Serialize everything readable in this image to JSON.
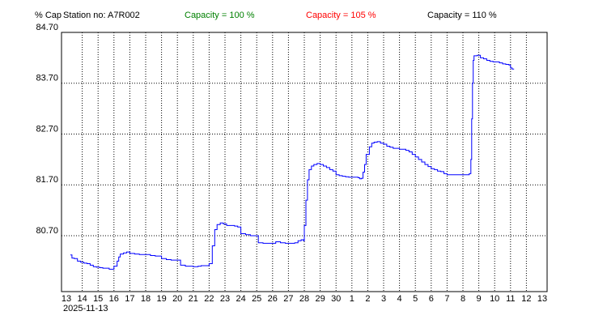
{
  "header": {
    "y_unit": "% Cap",
    "station": "Station no: A7R002",
    "capacity_100": "Capacity = 100 %",
    "capacity_105": "Capacity = 105 %",
    "capacity_110": "Capacity = 110 %"
  },
  "colors": {
    "cap100": "#008000",
    "cap105": "#ff0000",
    "cap110": "#000000",
    "series": "#0000ff",
    "grid": "#000000"
  },
  "chart_data": {
    "type": "line",
    "title": "",
    "xlabel": "",
    "ylabel": "% Cap",
    "date_label": "2025-11-13",
    "y_ticks": [
      "84.70",
      "83.70",
      "82.70",
      "81.70",
      "80.70"
    ],
    "ylim": [
      79.6,
      84.7
    ],
    "x_tick_labels": [
      "13",
      "14",
      "15",
      "16",
      "17",
      "18",
      "19",
      "20",
      "21",
      "22",
      "23",
      "24",
      "25",
      "26",
      "27",
      "28",
      "29",
      "30",
      "1",
      "2",
      "3",
      "4",
      "5",
      "6",
      "7",
      "8",
      "9",
      "10",
      "11",
      "12",
      "13"
    ],
    "grid": true,
    "series": [
      {
        "name": "",
        "points": [
          [
            0.25,
            80.32
          ],
          [
            0.35,
            80.26
          ],
          [
            0.5,
            80.25
          ],
          [
            0.7,
            80.2
          ],
          [
            0.9,
            80.18
          ],
          [
            1.1,
            80.16
          ],
          [
            1.3,
            80.15
          ],
          [
            1.5,
            80.12
          ],
          [
            1.7,
            80.09
          ],
          [
            1.9,
            80.08
          ],
          [
            2.1,
            80.07
          ],
          [
            2.3,
            80.06
          ],
          [
            2.5,
            80.06
          ],
          [
            2.7,
            80.04
          ],
          [
            2.9,
            80.04
          ],
          [
            3.0,
            80.1
          ],
          [
            3.2,
            80.2
          ],
          [
            3.3,
            80.28
          ],
          [
            3.4,
            80.34
          ],
          [
            3.6,
            80.36
          ],
          [
            3.8,
            80.38
          ],
          [
            4.0,
            80.35
          ],
          [
            4.3,
            80.34
          ],
          [
            4.6,
            80.33
          ],
          [
            5.0,
            80.33
          ],
          [
            5.3,
            80.31
          ],
          [
            5.6,
            80.3
          ],
          [
            5.8,
            80.3
          ],
          [
            6.0,
            80.25
          ],
          [
            6.3,
            80.23
          ],
          [
            6.6,
            80.22
          ],
          [
            6.9,
            80.22
          ],
          [
            7.2,
            80.12
          ],
          [
            7.5,
            80.1
          ],
          [
            7.8,
            80.1
          ],
          [
            8.0,
            80.09
          ],
          [
            8.3,
            80.1
          ],
          [
            8.5,
            80.11
          ],
          [
            8.7,
            80.11
          ],
          [
            8.9,
            80.11
          ],
          [
            9.0,
            80.15
          ],
          [
            9.2,
            80.5
          ],
          [
            9.35,
            80.82
          ],
          [
            9.5,
            80.92
          ],
          [
            9.7,
            80.95
          ],
          [
            9.9,
            80.93
          ],
          [
            10.1,
            80.9
          ],
          [
            10.4,
            80.9
          ],
          [
            10.6,
            80.89
          ],
          [
            10.8,
            80.87
          ],
          [
            11.0,
            80.74
          ],
          [
            11.3,
            80.72
          ],
          [
            11.6,
            80.7
          ],
          [
            11.9,
            80.7
          ],
          [
            12.1,
            80.56
          ],
          [
            12.4,
            80.55
          ],
          [
            12.7,
            80.55
          ],
          [
            13.0,
            80.55
          ],
          [
            13.2,
            80.58
          ],
          [
            13.5,
            80.56
          ],
          [
            13.8,
            80.55
          ],
          [
            14.1,
            80.55
          ],
          [
            14.4,
            80.56
          ],
          [
            14.6,
            80.6
          ],
          [
            14.8,
            80.62
          ],
          [
            14.95,
            80.6
          ],
          [
            15.0,
            80.9
          ],
          [
            15.1,
            81.4
          ],
          [
            15.2,
            81.8
          ],
          [
            15.3,
            82.0
          ],
          [
            15.45,
            82.07
          ],
          [
            15.6,
            82.1
          ],
          [
            15.8,
            82.12
          ],
          [
            16.0,
            82.1
          ],
          [
            16.2,
            82.07
          ],
          [
            16.4,
            82.04
          ],
          [
            16.6,
            82.0
          ],
          [
            16.8,
            81.97
          ],
          [
            17.0,
            81.9
          ],
          [
            17.2,
            81.88
          ],
          [
            17.4,
            81.87
          ],
          [
            17.6,
            81.86
          ],
          [
            17.8,
            81.85
          ],
          [
            18.0,
            81.85
          ],
          [
            18.2,
            81.85
          ],
          [
            18.4,
            81.84
          ],
          [
            18.5,
            81.82
          ],
          [
            18.6,
            81.83
          ],
          [
            18.7,
            81.95
          ],
          [
            18.8,
            82.1
          ],
          [
            18.9,
            82.3
          ],
          [
            19.1,
            82.45
          ],
          [
            19.25,
            82.52
          ],
          [
            19.4,
            82.54
          ],
          [
            19.6,
            82.55
          ],
          [
            19.8,
            82.52
          ],
          [
            20.0,
            82.5
          ],
          [
            20.2,
            82.46
          ],
          [
            20.4,
            82.44
          ],
          [
            20.6,
            82.42
          ],
          [
            20.8,
            82.42
          ],
          [
            21.0,
            82.4
          ],
          [
            21.2,
            82.4
          ],
          [
            21.4,
            82.38
          ],
          [
            21.6,
            82.35
          ],
          [
            21.8,
            82.3
          ],
          [
            22.0,
            82.25
          ],
          [
            22.2,
            82.2
          ],
          [
            22.4,
            82.15
          ],
          [
            22.6,
            82.1
          ],
          [
            22.8,
            82.06
          ],
          [
            23.0,
            82.02
          ],
          [
            23.2,
            82.0
          ],
          [
            23.4,
            81.97
          ],
          [
            23.6,
            81.96
          ],
          [
            23.8,
            81.92
          ],
          [
            24.0,
            81.9
          ],
          [
            24.3,
            81.9
          ],
          [
            24.6,
            81.9
          ],
          [
            24.9,
            81.9
          ],
          [
            25.1,
            81.9
          ],
          [
            25.3,
            81.9
          ],
          [
            25.4,
            81.92
          ],
          [
            25.5,
            82.2
          ],
          [
            25.55,
            83.0
          ],
          [
            25.6,
            83.7
          ],
          [
            25.65,
            84.15
          ],
          [
            25.7,
            84.24
          ],
          [
            25.9,
            84.25
          ],
          [
            26.1,
            84.2
          ],
          [
            26.3,
            84.18
          ],
          [
            26.5,
            84.15
          ],
          [
            26.7,
            84.13
          ],
          [
            26.9,
            84.12
          ],
          [
            27.1,
            84.12
          ],
          [
            27.3,
            84.1
          ],
          [
            27.5,
            84.08
          ],
          [
            27.7,
            84.07
          ],
          [
            27.9,
            84.06
          ],
          [
            28.0,
            84.0
          ],
          [
            28.1,
            83.98
          ],
          [
            28.2,
            83.97
          ]
        ]
      }
    ]
  }
}
